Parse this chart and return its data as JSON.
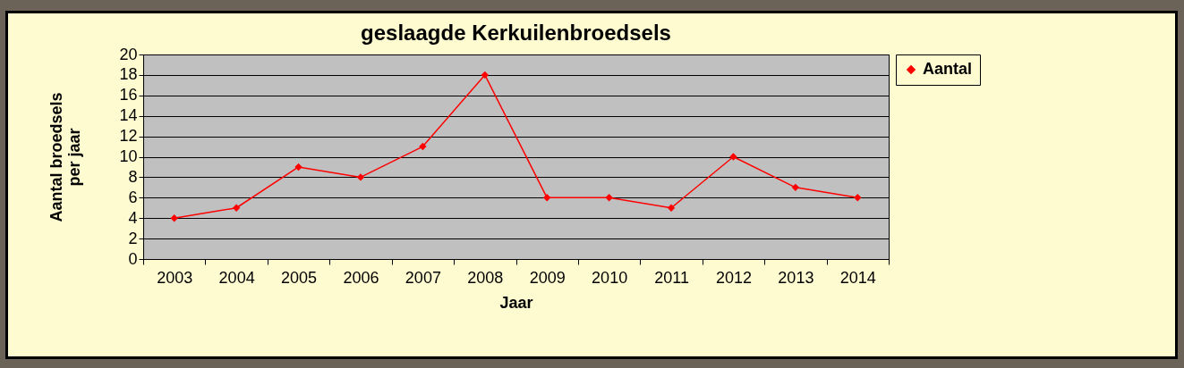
{
  "chart_data": {
    "type": "line",
    "title": "geslaagde Kerkuilenbroedsels",
    "xlabel": "Jaar",
    "ylabel": "Aantal  broedsels\nper jaar",
    "categories": [
      "2003",
      "2004",
      "2005",
      "2006",
      "2007",
      "2008",
      "2009",
      "2010",
      "2011",
      "2012",
      "2013",
      "2014"
    ],
    "series": [
      {
        "name": "Aantal",
        "color": "#ff0000",
        "values": [
          4,
          5,
          9,
          8,
          11,
          18,
          6,
          6,
          5,
          10,
          7,
          6
        ]
      }
    ],
    "ylim": [
      0,
      20
    ],
    "yticks": [
      0,
      2,
      4,
      6,
      8,
      10,
      12,
      14,
      16,
      18,
      20
    ],
    "grid": "y",
    "legend": "right",
    "marker": "diamond",
    "line_style": "solid"
  }
}
